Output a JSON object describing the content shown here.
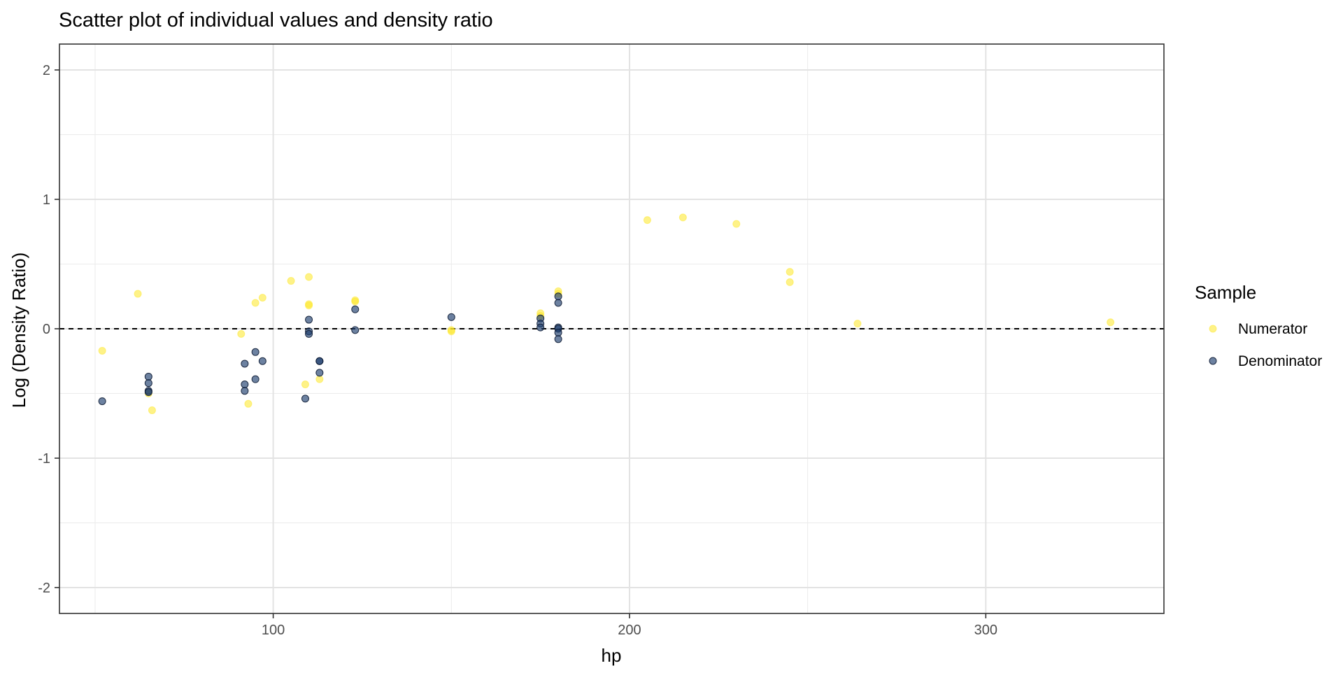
{
  "chart_data": {
    "type": "scatter",
    "title": "Scatter plot of individual values and density ratio",
    "xlabel": "hp",
    "ylabel": "Log (Density Ratio)",
    "xlim": [
      40,
      350
    ],
    "ylim": [
      -2.2,
      2.2
    ],
    "x_ticks": [
      100,
      200,
      300
    ],
    "y_ticks": [
      -2,
      -1,
      0,
      1,
      2
    ],
    "x_tick_labels": [
      "100",
      "200",
      "300"
    ],
    "y_tick_labels": [
      "-2",
      "-1",
      "0",
      "1",
      "2"
    ],
    "grid": true,
    "reference_line": {
      "y": 0,
      "style": "dashed"
    },
    "legend": {
      "title": "Sample",
      "position": "right",
      "entries": [
        "Numerator",
        "Denominator"
      ]
    },
    "series": [
      {
        "name": "Numerator",
        "color": "#fde725",
        "points": [
          [
            52,
            -0.17
          ],
          [
            62,
            0.27
          ],
          [
            65,
            -0.5
          ],
          [
            66,
            -0.63
          ],
          [
            91,
            -0.04
          ],
          [
            93,
            -0.58
          ],
          [
            95,
            0.2
          ],
          [
            97,
            0.24
          ],
          [
            105,
            0.37
          ],
          [
            109,
            -0.43
          ],
          [
            110,
            0.4
          ],
          [
            110,
            0.19
          ],
          [
            110,
            0.18
          ],
          [
            113,
            -0.39
          ],
          [
            123,
            0.22
          ],
          [
            123,
            0.21
          ],
          [
            150,
            -0.02
          ],
          [
            150,
            -0.01
          ],
          [
            175,
            0.12
          ],
          [
            175,
            0.1
          ],
          [
            180,
            0.29
          ],
          [
            180,
            0.27
          ],
          [
            205,
            0.84
          ],
          [
            215,
            0.86
          ],
          [
            230,
            0.81
          ],
          [
            245,
            0.44
          ],
          [
            245,
            0.36
          ],
          [
            264,
            0.04
          ],
          [
            335,
            0.05
          ]
        ]
      },
      {
        "name": "Denominator",
        "color": "#1f3f6e",
        "points": [
          [
            52,
            -0.56
          ],
          [
            65,
            -0.37
          ],
          [
            65,
            -0.42
          ],
          [
            65,
            -0.48
          ],
          [
            65,
            -0.49
          ],
          [
            92,
            -0.27
          ],
          [
            92,
            -0.43
          ],
          [
            92,
            -0.48
          ],
          [
            95,
            -0.18
          ],
          [
            95,
            -0.39
          ],
          [
            97,
            -0.25
          ],
          [
            109,
            -0.54
          ],
          [
            110,
            0.07
          ],
          [
            110,
            -0.02
          ],
          [
            110,
            -0.04
          ],
          [
            113,
            -0.25
          ],
          [
            113,
            -0.25
          ],
          [
            113,
            -0.34
          ],
          [
            123,
            0.15
          ],
          [
            123,
            -0.01
          ],
          [
            150,
            0.09
          ],
          [
            175,
            0.08
          ],
          [
            175,
            0.04
          ],
          [
            175,
            0.01
          ],
          [
            180,
            0.25
          ],
          [
            180,
            0.2
          ],
          [
            180,
            0.01
          ],
          [
            180,
            0.0
          ],
          [
            180,
            -0.03
          ],
          [
            180,
            -0.08
          ]
        ]
      }
    ]
  }
}
